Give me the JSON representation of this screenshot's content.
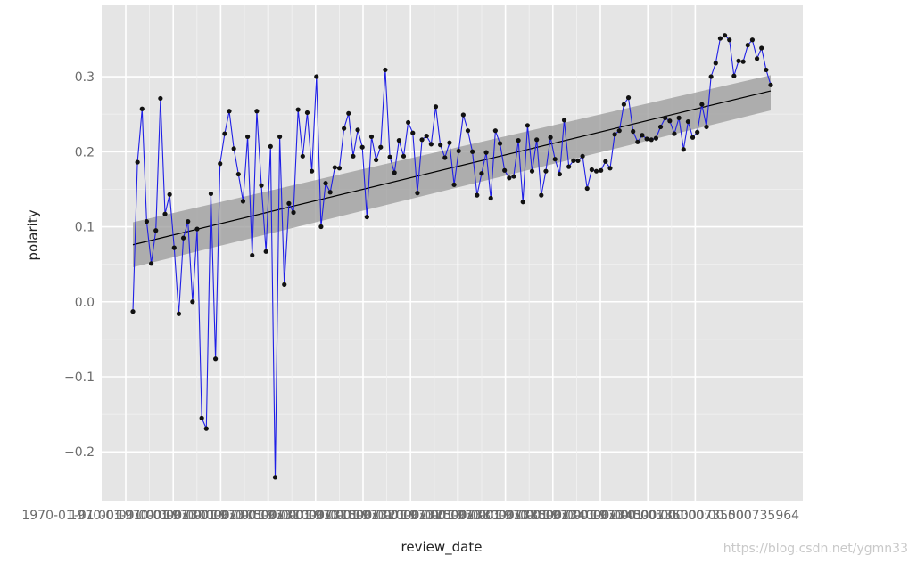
{
  "chart_data": {
    "type": "line",
    "title": "",
    "xlabel": "review_date",
    "ylabel": "polarity",
    "ylim": [
      -0.265,
      0.395
    ],
    "y_ticks": [
      -0.2,
      -0.1,
      0.0,
      0.1,
      0.2,
      0.3
    ],
    "y_tick_labels": [
      "−0.2",
      "−0.1",
      "0.0",
      "0.1",
      "0.2",
      "0.3"
    ],
    "x_tick_labels": [
      "1970-01-01 00:00:00.000730000",
      "1970-01-01 00:00:00.000730500",
      "1970-01-01 00:00:00.000731000",
      "1970-01-01 00:00:00.000731500",
      "1970-01-01 00:00:00.000732000",
      "1970-01-01 00:00:00.000732500",
      "1970-01-01 00:00:00.000733000",
      "1970-01-01 00:00:00.000733500",
      "1970-01-01 00:00:00.000734000",
      "1970-01-01 00:00:00.000734500",
      "1970-01-01 00:00:00.000735000",
      "1970-01-01 00:00:00.000735500",
      "1970-01-01 00:00:00.000735964"
    ],
    "grid": true,
    "background": "#e5e5e5",
    "colors": {
      "line": "#1f1fe6",
      "point": "#111111",
      "trend": "#000000",
      "band": "#9a9a9a"
    },
    "series": [
      {
        "values": [
          -0.013,
          0.186,
          0.257,
          0.107,
          0.051,
          0.095,
          0.271,
          0.117,
          0.143,
          0.072,
          -0.016,
          0.085,
          0.107,
          0.0,
          0.097,
          -0.155,
          -0.169,
          0.144,
          -0.076,
          0.184,
          0.224,
          0.254,
          0.204,
          0.17,
          0.134,
          0.22,
          0.062,
          0.254,
          0.155,
          0.067,
          0.207,
          -0.234,
          0.22,
          0.023,
          0.131,
          0.119,
          0.256,
          0.194,
          0.252,
          0.174,
          0.3,
          0.1,
          0.158,
          0.146,
          0.179,
          0.178,
          0.231,
          0.251,
          0.194,
          0.229,
          0.206,
          0.113,
          0.22,
          0.189,
          0.206,
          0.309,
          0.193,
          0.172,
          0.215,
          0.194,
          0.239,
          0.225,
          0.145,
          0.216,
          0.221,
          0.21,
          0.26,
          0.209,
          0.192,
          0.212,
          0.156,
          0.201,
          0.249,
          0.228,
          0.2,
          0.142,
          0.171,
          0.199,
          0.138,
          0.228,
          0.211,
          0.175,
          0.165,
          0.167,
          0.215,
          0.133,
          0.235,
          0.174,
          0.216,
          0.142,
          0.174,
          0.219,
          0.19,
          0.17,
          0.242,
          0.18,
          0.188,
          0.188,
          0.194,
          0.151,
          0.176,
          0.174,
          0.175,
          0.187,
          0.178,
          0.223,
          0.228,
          0.263,
          0.272,
          0.227,
          0.213,
          0.222,
          0.217,
          0.216,
          0.218,
          0.233,
          0.245,
          0.241,
          0.224,
          0.245,
          0.203,
          0.24,
          0.219,
          0.226,
          0.263,
          0.233,
          0.3,
          0.318,
          0.351,
          0.355,
          0.349,
          0.301,
          0.321,
          0.32,
          0.342,
          0.349,
          0.324,
          0.338,
          0.309,
          0.289
        ]
      }
    ],
    "trend": {
      "start": 0.076,
      "end": 0.281
    },
    "band": {
      "start_low": 0.046,
      "start_high": 0.106,
      "end_low": 0.255,
      "end_high": 0.302
    }
  },
  "watermark": "https://blog.csdn.net/ygmn33"
}
